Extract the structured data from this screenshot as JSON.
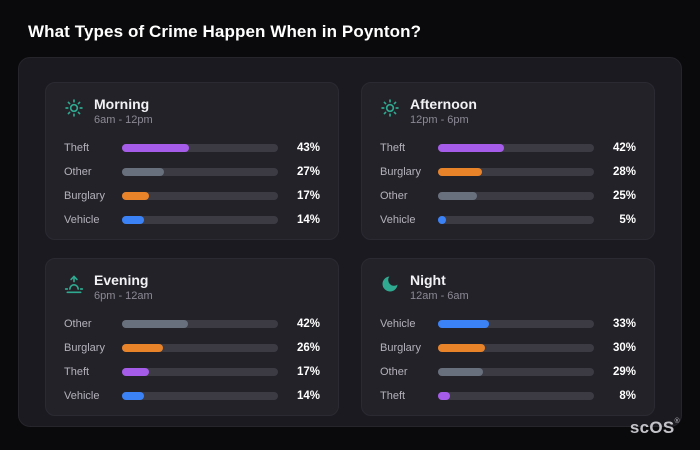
{
  "page": {
    "title": "What Types of Crime Happen When in Poynton?"
  },
  "brand": {
    "name": "scOS",
    "mark": "®"
  },
  "colors": {
    "accent_icon": "#2fa98f",
    "theft": "#a55ce8",
    "other": "#68707d",
    "burglary": "#e8832a",
    "vehicle": "#3b82f6",
    "panel_bg": "#1b1a20",
    "card_bg": "#232229",
    "track_bg": "#3c3b44"
  },
  "cards": [
    {
      "title": "Morning",
      "subtitle": "6am - 12pm",
      "icon": "sun-icon",
      "rows": [
        {
          "label": "Theft",
          "value": 43,
          "pct": "43%",
          "color": "#a55ce8"
        },
        {
          "label": "Other",
          "value": 27,
          "pct": "27%",
          "color": "#68707d"
        },
        {
          "label": "Burglary",
          "value": 17,
          "pct": "17%",
          "color": "#e8832a"
        },
        {
          "label": "Vehicle",
          "value": 14,
          "pct": "14%",
          "color": "#3b82f6"
        }
      ]
    },
    {
      "title": "Afternoon",
      "subtitle": "12pm - 6pm",
      "icon": "sun-icon",
      "rows": [
        {
          "label": "Theft",
          "value": 42,
          "pct": "42%",
          "color": "#a55ce8"
        },
        {
          "label": "Burglary",
          "value": 28,
          "pct": "28%",
          "color": "#e8832a"
        },
        {
          "label": "Other",
          "value": 25,
          "pct": "25%",
          "color": "#68707d"
        },
        {
          "label": "Vehicle",
          "value": 5,
          "pct": "5%",
          "color": "#3b82f6"
        }
      ]
    },
    {
      "title": "Evening",
      "subtitle": "6pm - 12am",
      "icon": "sunset-icon",
      "rows": [
        {
          "label": "Other",
          "value": 42,
          "pct": "42%",
          "color": "#68707d"
        },
        {
          "label": "Burglary",
          "value": 26,
          "pct": "26%",
          "color": "#e8832a"
        },
        {
          "label": "Theft",
          "value": 17,
          "pct": "17%",
          "color": "#a55ce8"
        },
        {
          "label": "Vehicle",
          "value": 14,
          "pct": "14%",
          "color": "#3b82f6"
        }
      ]
    },
    {
      "title": "Night",
      "subtitle": "12am - 6am",
      "icon": "moon-icon",
      "rows": [
        {
          "label": "Vehicle",
          "value": 33,
          "pct": "33%",
          "color": "#3b82f6"
        },
        {
          "label": "Burglary",
          "value": 30,
          "pct": "30%",
          "color": "#e8832a"
        },
        {
          "label": "Other",
          "value": 29,
          "pct": "29%",
          "color": "#68707d"
        },
        {
          "label": "Theft",
          "value": 8,
          "pct": "8%",
          "color": "#a55ce8"
        }
      ]
    }
  ],
  "chart_data": [
    {
      "type": "bar",
      "orientation": "horizontal",
      "title": "Morning",
      "subtitle": "6am - 12pm",
      "categories": [
        "Theft",
        "Other",
        "Burglary",
        "Vehicle"
      ],
      "values": [
        43,
        27,
        17,
        14
      ],
      "unit": "%",
      "xlim": [
        0,
        100
      ],
      "grid": false,
      "legend": false
    },
    {
      "type": "bar",
      "orientation": "horizontal",
      "title": "Afternoon",
      "subtitle": "12pm - 6pm",
      "categories": [
        "Theft",
        "Burglary",
        "Other",
        "Vehicle"
      ],
      "values": [
        42,
        28,
        25,
        5
      ],
      "unit": "%",
      "xlim": [
        0,
        100
      ],
      "grid": false,
      "legend": false
    },
    {
      "type": "bar",
      "orientation": "horizontal",
      "title": "Evening",
      "subtitle": "6pm - 12am",
      "categories": [
        "Other",
        "Burglary",
        "Theft",
        "Vehicle"
      ],
      "values": [
        42,
        26,
        17,
        14
      ],
      "unit": "%",
      "xlim": [
        0,
        100
      ],
      "grid": false,
      "legend": false
    },
    {
      "type": "bar",
      "orientation": "horizontal",
      "title": "Night",
      "subtitle": "12am - 6am",
      "categories": [
        "Vehicle",
        "Burglary",
        "Other",
        "Theft"
      ],
      "values": [
        33,
        30,
        29,
        8
      ],
      "unit": "%",
      "xlim": [
        0,
        100
      ],
      "grid": false,
      "legend": false
    }
  ]
}
